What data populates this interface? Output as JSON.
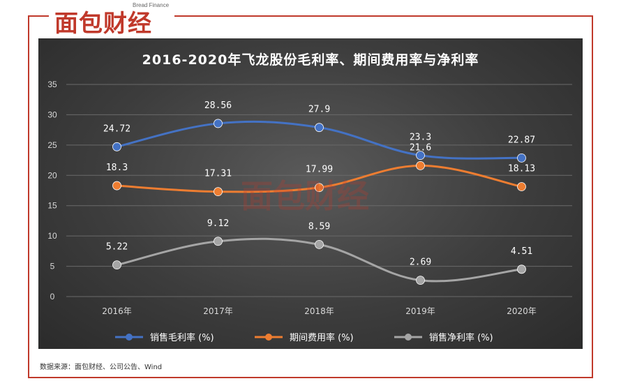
{
  "brand": {
    "name": "面包财经",
    "sub": "Bread Finance"
  },
  "source": "数据来源：面包财经、公司公告、Wind",
  "colors": {
    "frame": "#c0392b",
    "panel": "#3d3d3d"
  },
  "chart_data": {
    "type": "line",
    "title": "2016-2020年飞龙股份毛利率、期间费用率与净利率",
    "categories": [
      "2016年",
      "2017年",
      "2018年",
      "2019年",
      "2020年"
    ],
    "ylim": [
      0,
      35
    ],
    "yticks": [
      "0",
      "5",
      "10",
      "15",
      "20",
      "25",
      "30",
      "35"
    ],
    "grid": true,
    "legend_position": "bottom",
    "series": [
      {
        "name": "销售毛利率 (%)",
        "color": "#4472c4",
        "values": [
          24.72,
          28.56,
          27.9,
          23.3,
          22.87
        ],
        "labels": [
          "24.72",
          "28.56",
          "27.9",
          "23.3",
          "22.87"
        ]
      },
      {
        "name": "期间费用率 (%)",
        "color": "#ed7d31",
        "values": [
          18.3,
          17.31,
          17.99,
          21.6,
          18.13
        ],
        "labels": [
          "18.3",
          "17.31",
          "17.99",
          "21.6",
          "18.13"
        ]
      },
      {
        "name": "销售净利率 (%)",
        "color": "#a5a5a5",
        "values": [
          5.22,
          9.12,
          8.59,
          2.69,
          4.51
        ],
        "labels": [
          "5.22",
          "9.12",
          "8.59",
          "2.69",
          "4.51"
        ]
      }
    ]
  }
}
